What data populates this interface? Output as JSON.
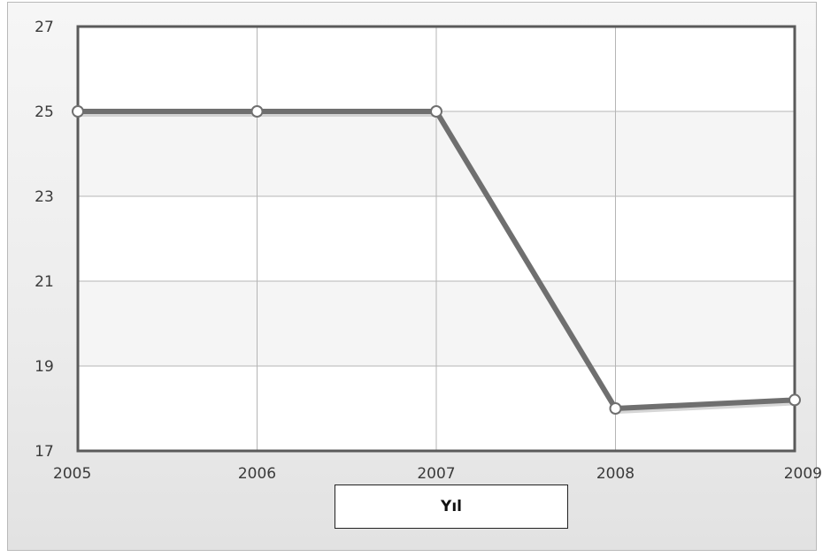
{
  "chart_data": {
    "type": "line",
    "x": [
      "2005",
      "2006",
      "2007",
      "2008",
      "2009"
    ],
    "series": [
      {
        "values": [
          25,
          25,
          25,
          18,
          18.2
        ]
      }
    ],
    "xlabel": "Yıl",
    "ylabel": "",
    "ylim": [
      17,
      27
    ],
    "yticks": [
      "17",
      "19",
      "21",
      "23",
      "25",
      "27"
    ],
    "grid": true,
    "line_color": "#6f6f6f",
    "marker_fill": "#ffffff",
    "band_color": "#f5f5f5"
  }
}
